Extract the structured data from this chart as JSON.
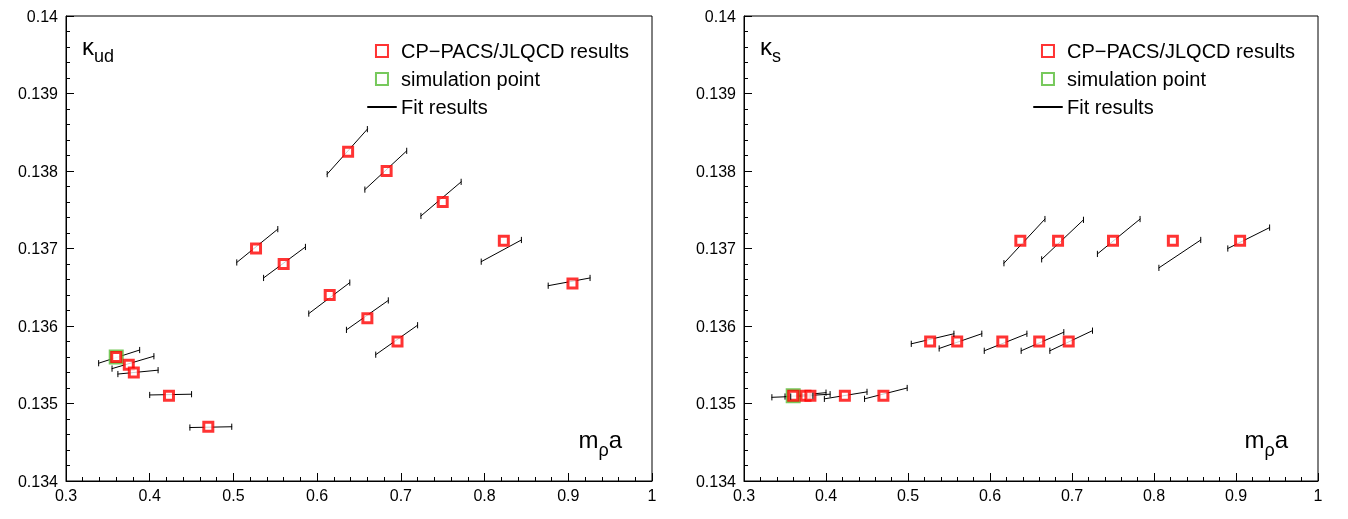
{
  "chart_data": [
    {
      "type": "scatter",
      "ylabel": "κ$_{ud}$",
      "xlabel": "m$_{ρ}$a",
      "xlim": [
        0.3,
        1
      ],
      "ylim": [
        0.134,
        0.14
      ],
      "xticks": [
        0.3,
        0.4,
        0.5,
        0.6,
        0.7,
        0.8,
        0.9,
        1
      ],
      "yticks": [
        0.134,
        0.135,
        0.136,
        0.137,
        0.138,
        0.139,
        0.14
      ],
      "legend": "top right",
      "grid": false,
      "series": [
        {
          "name": "CP−PACS/JLQCD results",
          "type": "scatter",
          "marker": "square",
          "color": "#ff0000",
          "x": [
            0.36,
            0.375,
            0.381,
            0.423,
            0.47,
            0.527,
            0.56,
            0.615,
            0.66,
            0.696,
            0.637,
            0.683,
            0.75,
            0.823,
            0.905
          ],
          "values": [
            0.1356,
            0.1355,
            0.1354,
            0.1351,
            0.1347,
            0.137,
            0.1368,
            0.1364,
            0.1361,
            0.1358,
            0.13825,
            0.138,
            0.1376,
            0.1371,
            0.13655
          ]
        },
        {
          "name": "simulation point",
          "type": "scatter",
          "marker": "square",
          "color": "#55bb33",
          "x": [
            0.36
          ],
          "values": [
            0.1356
          ]
        },
        {
          "name": "Fit results",
          "type": "line",
          "marker": "none",
          "color": "#000000",
          "x": [
            0.339,
            0.388,
            null,
            0.355,
            0.405,
            null,
            0.362,
            0.41,
            null,
            0.4,
            0.45,
            null,
            0.448,
            0.498,
            null,
            0.504,
            0.553,
            null,
            0.536,
            0.586,
            null,
            0.59,
            0.639,
            null,
            0.635,
            0.685,
            null,
            0.67,
            0.72,
            null,
            0.612,
            0.66,
            null,
            0.657,
            0.707,
            null,
            0.724,
            0.772,
            null,
            0.796,
            0.844,
            null,
            0.876,
            0.926
          ],
          "values": [
            0.13552,
            0.13569,
            null,
            0.13545,
            0.13561,
            null,
            0.13538,
            0.13543,
            null,
            0.13511,
            0.13512,
            null,
            0.13469,
            0.1347,
            null,
            0.13682,
            0.13725,
            null,
            0.13662,
            0.13702,
            null,
            0.13616,
            0.13656,
            null,
            0.13595,
            0.13633,
            null,
            0.13563,
            0.13601,
            null,
            0.13796,
            0.13854,
            null,
            0.13776,
            0.13826,
            null,
            0.13742,
            0.13786,
            null,
            0.13683,
            0.13711,
            null,
            0.13652,
            0.13662
          ],
          "errors": [
            4e-05,
            4e-05,
            null,
            4e-05,
            4e-05,
            null,
            4e-05,
            4e-05,
            null,
            4e-05,
            4e-05,
            null,
            4e-05,
            4e-05,
            null,
            4e-05,
            4e-05,
            null,
            4e-05,
            4e-05,
            null,
            4e-05,
            4e-05,
            null,
            4e-05,
            4e-05,
            null,
            4e-05,
            4e-05,
            null,
            4e-05,
            4e-05,
            null,
            4e-05,
            4e-05,
            null,
            4e-05,
            4e-05,
            null,
            4e-05,
            4e-05,
            null,
            4e-05,
            4e-05
          ]
        }
      ]
    },
    {
      "type": "scatter",
      "ylabel": "κ$_{s}$",
      "xlabel": "m$_{ρ}$a",
      "xlim": [
        0.3,
        1
      ],
      "ylim": [
        0.134,
        0.14
      ],
      "xticks": [
        0.3,
        0.4,
        0.5,
        0.6,
        0.7,
        0.8,
        0.9,
        1
      ],
      "yticks": [
        0.134,
        0.135,
        0.136,
        0.137,
        0.138,
        0.139,
        0.14
      ],
      "legend": "top right",
      "grid": false,
      "series": [
        {
          "name": "CP−PACS/JLQCD results",
          "type": "scatter",
          "marker": "square",
          "color": "#ff0000",
          "x": [
            0.36,
            0.375,
            0.381,
            0.423,
            0.47,
            0.527,
            0.56,
            0.615,
            0.66,
            0.696,
            0.637,
            0.683,
            0.75,
            0.823,
            0.905
          ],
          "values": [
            0.1351,
            0.1351,
            0.1351,
            0.1351,
            0.1351,
            0.1358,
            0.1358,
            0.1358,
            0.1358,
            0.1358,
            0.1371,
            0.1371,
            0.1371,
            0.1371,
            0.1371
          ]
        },
        {
          "name": "simulation point",
          "type": "scatter",
          "marker": "square",
          "color": "#55bb33",
          "x": [
            0.36
          ],
          "values": [
            0.1351
          ]
        },
        {
          "name": "Fit results",
          "type": "line",
          "marker": "none",
          "color": "#000000",
          "x": [
            0.334,
            0.384,
            null,
            0.35,
            0.4,
            null,
            0.357,
            0.405,
            null,
            0.398,
            0.45,
            null,
            0.447,
            0.499,
            null,
            0.504,
            0.556,
            null,
            0.538,
            0.59,
            null,
            0.593,
            0.645,
            null,
            0.638,
            0.69,
            null,
            0.673,
            0.725,
            null,
            0.617,
            0.667,
            null,
            0.663,
            0.714,
            null,
            0.731,
            0.783,
            null,
            0.806,
            0.857,
            null,
            0.89,
            0.941
          ],
          "values": [
            0.13508,
            0.1351,
            null,
            0.13509,
            0.13514,
            null,
            0.13509,
            0.13512,
            null,
            0.13506,
            0.13515,
            null,
            0.13506,
            0.1352,
            null,
            0.13577,
            0.1359,
            null,
            0.13571,
            0.1359,
            null,
            0.13568,
            0.1359,
            null,
            0.13568,
            0.13592,
            null,
            0.13568,
            0.13594,
            null,
            0.13681,
            0.13738,
            null,
            0.13686,
            0.13737,
            null,
            0.13693,
            0.13738,
            null,
            0.13675,
            0.13711,
            null,
            0.137,
            0.13727
          ],
          "errors": [
            4e-05,
            4e-05,
            null,
            4e-05,
            4e-05,
            null,
            4e-05,
            4e-05,
            null,
            4e-05,
            4e-05,
            null,
            4e-05,
            4e-05,
            null,
            4e-05,
            4e-05,
            null,
            4e-05,
            4e-05,
            null,
            4e-05,
            4e-05,
            null,
            4e-05,
            4e-05,
            null,
            4e-05,
            4e-05,
            null,
            4e-05,
            4e-05,
            null,
            4e-05,
            4e-05,
            null,
            4e-05,
            4e-05,
            null,
            4e-05,
            4e-05,
            null,
            4e-05,
            4e-05
          ]
        }
      ]
    }
  ]
}
